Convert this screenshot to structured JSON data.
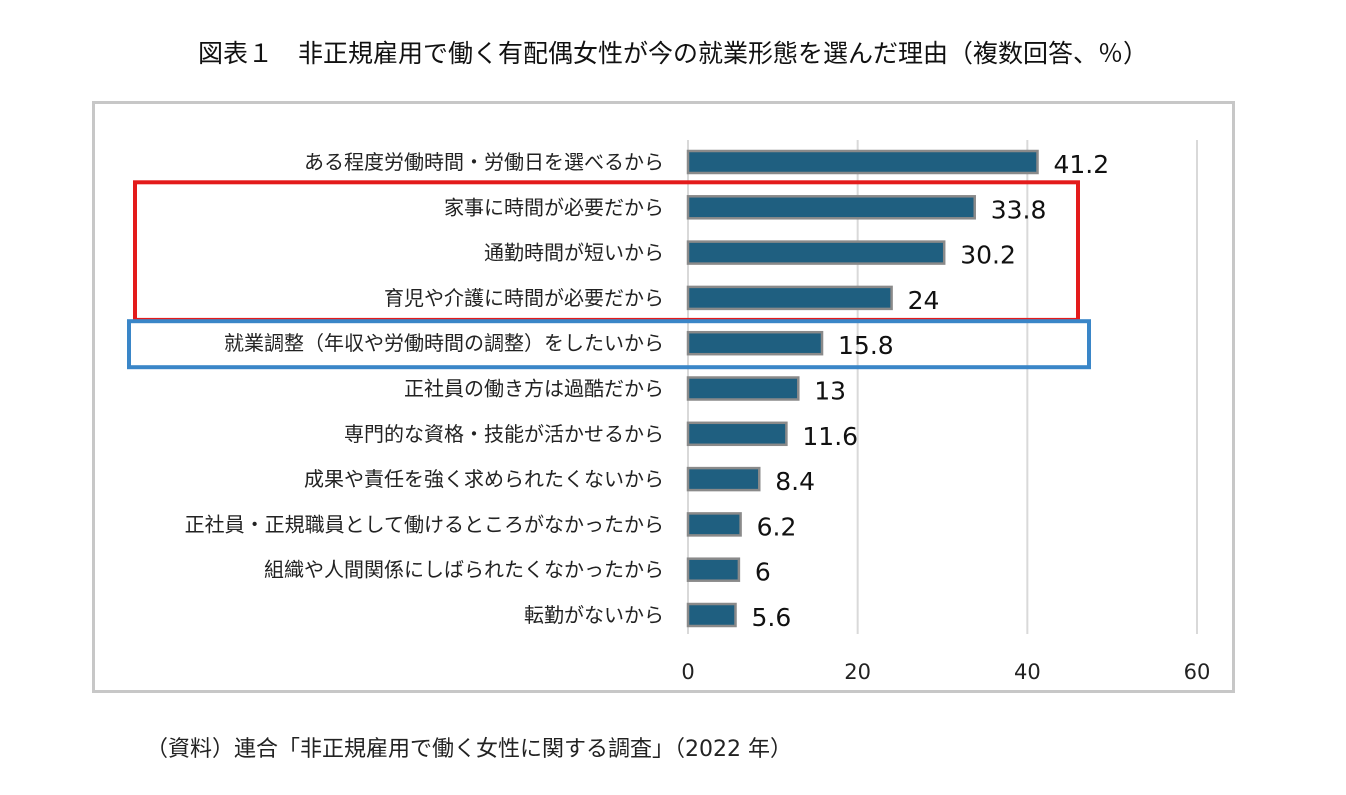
{
  "title": "図表１　非正規雇用で働く有配偶女性が今の就業形態を選んだ理由（複数回答、％）",
  "source": "（資料）連合「非正規雇用で働く女性に関する調査」（2022 年）",
  "chart_data": {
    "type": "bar",
    "orientation": "horizontal",
    "categories": [
      "ある程度労働時間・労働日を選べるから",
      "家事に時間が必要だから",
      "通勤時間が短いから",
      "育児や介護に時間が必要だから",
      "就業調整（年収や労働時間の調整）をしたいから",
      "正社員の働き方は過酷だから",
      "専門的な資格・技能が活かせるから",
      "成果や責任を強く求められたくないから",
      "正社員・正規職員として働けるところがなかったから",
      "組織や人間関係にしばられたくなかったから",
      "転勤がないから"
    ],
    "values": [
      41.2,
      33.8,
      30.2,
      24,
      15.8,
      13,
      11.6,
      8.4,
      6.2,
      6,
      5.6
    ],
    "value_labels": [
      "41.2",
      "33.8",
      "30.2",
      "24",
      "15.8",
      "13",
      "11.6",
      "8.4",
      "6.2",
      "6",
      "5.6"
    ],
    "xlim": [
      0,
      60
    ],
    "xticks": [
      0,
      20,
      40,
      60
    ],
    "xtick_labels": [
      "0",
      "20",
      "40",
      "60"
    ],
    "grid": "vertical",
    "bar_color": "#1f5f80",
    "bar_edge_color": "#8a8a8a",
    "highlight_red": {
      "color": "#e31b1b",
      "categories": [
        1,
        2,
        3
      ]
    },
    "highlight_blue": {
      "color": "#3a86c8",
      "categories": [
        4
      ]
    }
  }
}
